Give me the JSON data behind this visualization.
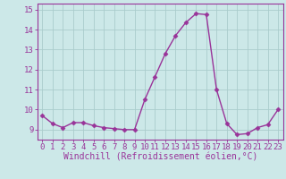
{
  "x": [
    0,
    1,
    2,
    3,
    4,
    5,
    6,
    7,
    8,
    9,
    10,
    11,
    12,
    13,
    14,
    15,
    16,
    17,
    18,
    19,
    20,
    21,
    22,
    23
  ],
  "y": [
    9.7,
    9.3,
    9.1,
    9.35,
    9.35,
    9.2,
    9.1,
    9.05,
    9.0,
    9.0,
    10.5,
    11.65,
    12.8,
    13.7,
    14.35,
    14.8,
    14.75,
    11.0,
    9.3,
    8.75,
    8.8,
    9.1,
    9.25,
    10.0
  ],
  "line_color": "#993399",
  "marker": "D",
  "marker_size": 2.5,
  "background_color": "#cce8e8",
  "grid_color": "#aacccc",
  "xlabel": "Windchill (Refroidissement éolien,°C)",
  "ylim": [
    8.5,
    15.3
  ],
  "yticks": [
    9,
    10,
    11,
    12,
    13,
    14,
    15
  ],
  "xticks": [
    0,
    1,
    2,
    3,
    4,
    5,
    6,
    7,
    8,
    9,
    10,
    11,
    12,
    13,
    14,
    15,
    16,
    17,
    18,
    19,
    20,
    21,
    22,
    23
  ],
  "label_color": "#993399",
  "xlabel_fontsize": 7,
  "tick_fontsize": 6.5,
  "linewidth": 1.0
}
